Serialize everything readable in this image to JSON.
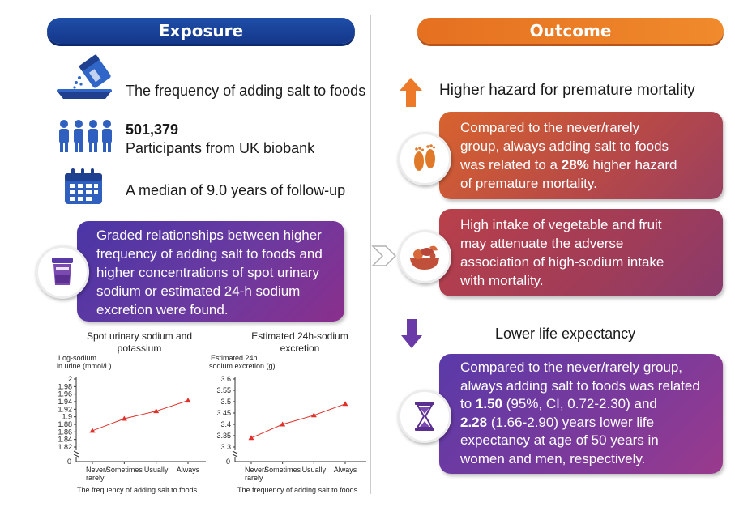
{
  "exposure": {
    "header": "Exposure",
    "item1": "The frequency of adding salt to foods",
    "participants_count": "501,379",
    "participants_label": "Participants from UK biobank",
    "followup": "A median of 9.0 years of follow-up",
    "box_lines": [
      "Graded relationships between higher",
      "frequency of adding salt to foods and",
      "higher concentrations of spot urinary",
      "sodium or estimated 24-h sodium",
      "excretion were found."
    ]
  },
  "outcome": {
    "header": "Outcome",
    "higher_hazard_title": "Higher hazard for premature mortality",
    "box1_lines": [
      "Compared to the never/rarely",
      "group, always adding salt to foods",
      "was related to a "
    ],
    "box1_bold": "28%",
    "box1_after": " higher hazard",
    "box1_last": "of premature mortality.",
    "box2_lines": [
      "High intake of vegetable and fruit",
      "may attenuate the adverse",
      "association of high-sodium intake",
      "with mortality."
    ],
    "lower_life_title": "Lower life expectancy",
    "box3_line1": "Compared to the never/rarely group,",
    "box3_line2": "always adding salt to foods was related",
    "box3_line3_pre": "to ",
    "box3_bold1": "1.50",
    "box3_line3_post": " (95%, CI, 0.72-2.30) and",
    "box3_bold2": "2.28",
    "box3_line4_post": " (1.66-2.90) years lower life",
    "box3_line5": "expectancy at age of 50 years in",
    "box3_line6": "women and men, respectively."
  },
  "colors": {
    "exposure_blue": "#1f4ea8",
    "outcome_orange": "#e57020",
    "chart_red": "#e0302a",
    "icon_navy": "#1f3f8f"
  },
  "chart_data": [
    {
      "type": "line",
      "title": "Spot urinary sodium and potassium",
      "ylabel": "Log-sodium in urine (mmol/L)",
      "xlabel": "The frequency of adding salt to foods",
      "categories": [
        "Never/ rarely",
        "Sometimes",
        "Usually",
        "Always"
      ],
      "values": [
        1.863,
        1.895,
        1.915,
        1.943
      ],
      "ylim": [
        1.82,
        2.0
      ],
      "yticks": [
        "2",
        "1.98",
        "1.96",
        "1.94",
        "1.92",
        "1.9",
        "1.88",
        "1.86",
        "1.84",
        "1.82"
      ],
      "ybreak_label": "0"
    },
    {
      "type": "line",
      "title": "Estimated 24h-sodium excretion",
      "ylabel": "Estimated 24h sodium excretion (g)",
      "xlabel": "The frequency of adding salt to foods",
      "categories": [
        "Never/ rarely",
        "Sometimes",
        "Usually",
        "Always"
      ],
      "values": [
        3.34,
        3.4,
        3.44,
        3.49
      ],
      "ylim": [
        3.3,
        3.6
      ],
      "yticks": [
        "3.6",
        "3.55",
        "3.5",
        "3.45",
        "3.4",
        "3.35",
        "3.3"
      ],
      "ybreak_label": "0"
    }
  ]
}
